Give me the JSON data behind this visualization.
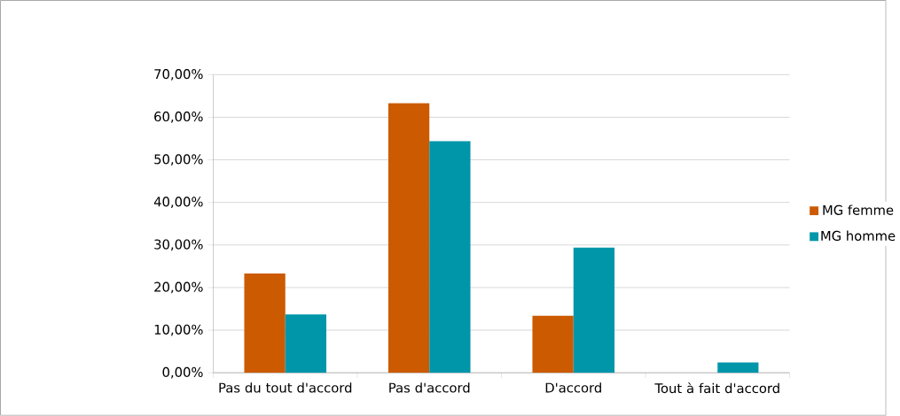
{
  "chart_data": {
    "type": "bar",
    "categories": [
      "Pas du tout d'accord",
      "Pas d'accord",
      "D'accord",
      "Tout à fait d'accord"
    ],
    "series": [
      {
        "name": "MG femme",
        "color": "#cc5a00",
        "values": [
          23.3,
          63.3,
          13.4,
          0
        ]
      },
      {
        "name": "MG homme",
        "color": "#0096aa",
        "values": [
          13.7,
          54.4,
          29.4,
          2.4
        ]
      }
    ],
    "ylim": [
      0,
      70
    ],
    "yticks": [
      {
        "value": 0,
        "label": "0,00%"
      },
      {
        "value": 10,
        "label": "10,00%"
      },
      {
        "value": 20,
        "label": "20,00%"
      },
      {
        "value": 30,
        "label": "30,00%"
      },
      {
        "value": 40,
        "label": "40,00%"
      },
      {
        "value": 50,
        "label": "50,00%"
      },
      {
        "value": 60,
        "label": "60,00%"
      },
      {
        "value": 70,
        "label": "70,00%"
      }
    ],
    "grid": "y",
    "legend": "right"
  }
}
